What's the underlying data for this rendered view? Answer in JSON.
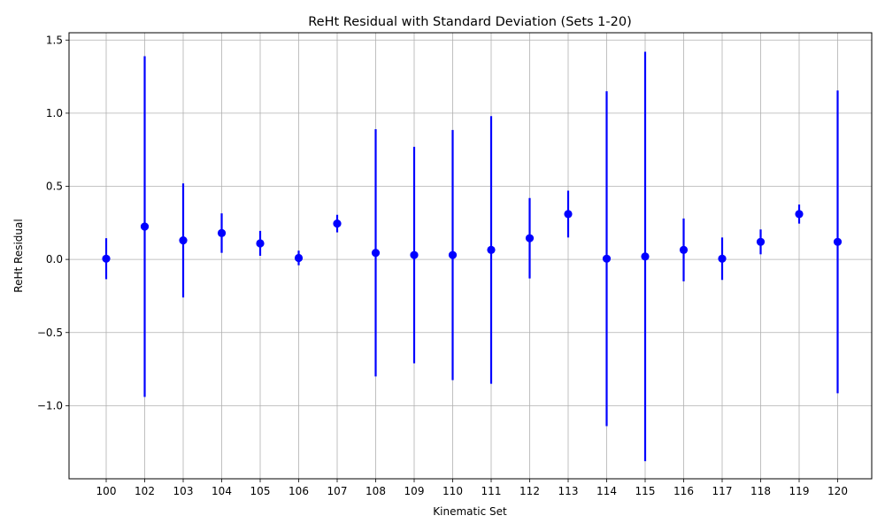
{
  "chart_data": {
    "type": "scatter",
    "title": "ReHt Residual with Standard Deviation (Sets 1-20)",
    "xlabel": "Kinematic Set",
    "ylabel": "ReHt Residual",
    "categories": [
      "100",
      "102",
      "103",
      "104",
      "105",
      "106",
      "107",
      "108",
      "109",
      "110",
      "111",
      "112",
      "113",
      "114",
      "115",
      "116",
      "117",
      "118",
      "119",
      "120"
    ],
    "series": [
      {
        "values": [
          0.005,
          0.225,
          0.13,
          0.18,
          0.11,
          0.01,
          0.245,
          0.045,
          0.03,
          0.03,
          0.065,
          0.145,
          0.31,
          0.005,
          0.02,
          0.065,
          0.005,
          0.12,
          0.31,
          0.12
        ],
        "error": [
          0.14,
          1.165,
          0.39,
          0.135,
          0.085,
          0.05,
          0.06,
          0.845,
          0.74,
          0.855,
          0.915,
          0.275,
          0.16,
          1.145,
          1.4,
          0.215,
          0.145,
          0.085,
          0.065,
          1.035
        ]
      }
    ],
    "color": "#0000ff",
    "ylim": [
      -1.5,
      1.55
    ],
    "yticks": [
      -1.0,
      -0.5,
      0.0,
      0.5,
      1.0,
      1.5
    ],
    "ytick_labels": [
      "−1.0",
      "−0.5",
      "0.0",
      "0.5",
      "1.0",
      "1.5"
    ],
    "grid": true
  }
}
